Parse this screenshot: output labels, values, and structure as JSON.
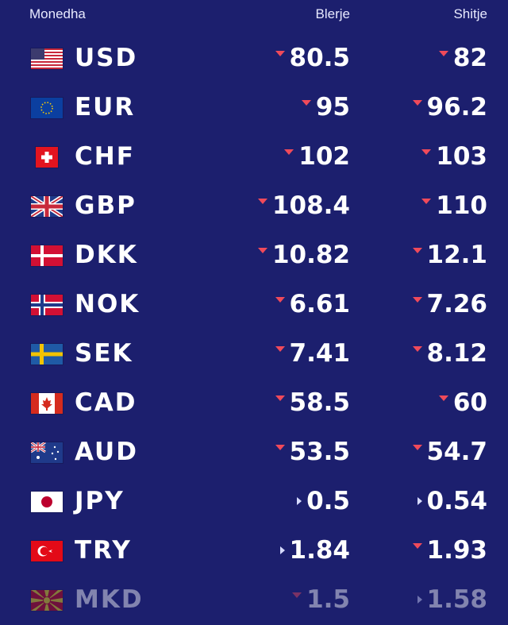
{
  "header": {
    "currency": "Monedha",
    "buy": "Blerje",
    "sell": "Shitje"
  },
  "colors": {
    "background": "#1c1f6e",
    "down_arrow": "#f04a5a",
    "neutral_arrow": "#d7dbff"
  },
  "rows": [
    {
      "code": "USD",
      "flag": "us-flag",
      "buy": "80.5",
      "buy_trend": "down",
      "sell": "82",
      "sell_trend": "down"
    },
    {
      "code": "EUR",
      "flag": "eu-flag",
      "buy": "95",
      "buy_trend": "down",
      "sell": "96.2",
      "sell_trend": "down"
    },
    {
      "code": "CHF",
      "flag": "ch-flag",
      "buy": "102",
      "buy_trend": "down",
      "sell": "103",
      "sell_trend": "down"
    },
    {
      "code": "GBP",
      "flag": "gb-flag",
      "buy": "108.4",
      "buy_trend": "down",
      "sell": "110",
      "sell_trend": "down"
    },
    {
      "code": "DKK",
      "flag": "dk-flag",
      "buy": "10.82",
      "buy_trend": "down",
      "sell": "12.1",
      "sell_trend": "down"
    },
    {
      "code": "NOK",
      "flag": "no-flag",
      "buy": "6.61",
      "buy_trend": "down",
      "sell": "7.26",
      "sell_trend": "down"
    },
    {
      "code": "SEK",
      "flag": "se-flag",
      "buy": "7.41",
      "buy_trend": "down",
      "sell": "8.12",
      "sell_trend": "down"
    },
    {
      "code": "CAD",
      "flag": "ca-flag",
      "buy": "58.5",
      "buy_trend": "down",
      "sell": "60",
      "sell_trend": "down"
    },
    {
      "code": "AUD",
      "flag": "au-flag",
      "buy": "53.5",
      "buy_trend": "down",
      "sell": "54.7",
      "sell_trend": "down"
    },
    {
      "code": "JPY",
      "flag": "jp-flag",
      "buy": "0.5",
      "buy_trend": "neutral",
      "sell": "0.54",
      "sell_trend": "neutral"
    },
    {
      "code": "TRY",
      "flag": "tr-flag",
      "buy": "1.84",
      "buy_trend": "neutral",
      "sell": "1.93",
      "sell_trend": "down"
    },
    {
      "code": "MKD",
      "flag": "mk-flag",
      "buy": "1.5",
      "buy_trend": "down",
      "sell": "1.58",
      "sell_trend": "neutral"
    }
  ]
}
